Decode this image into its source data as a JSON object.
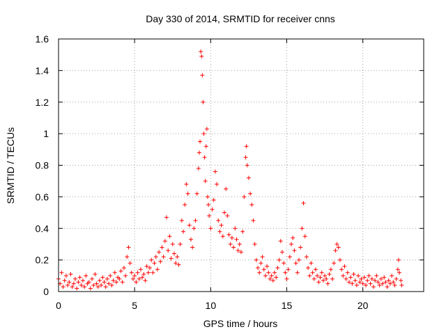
{
  "chart_data": {
    "type": "scatter",
    "title": "Day 330 of 2014, SRMTID for receiver cnns",
    "xlabel": "GPS time / hours",
    "ylabel": "SRMTID / TECUs",
    "xlim": [
      0,
      24
    ],
    "ylim": [
      0,
      1.6
    ],
    "grid": true,
    "marker": "+",
    "color": "#ff0000",
    "x_ticks": [
      0,
      5,
      10,
      15,
      20
    ],
    "x_tick_labels": [
      "0",
      "5",
      "10",
      "15",
      "20"
    ],
    "y_ticks": [
      0,
      0.2,
      0.4,
      0.6,
      0.8,
      1.0,
      1.2,
      1.4,
      1.6
    ],
    "y_tick_labels": [
      "0",
      "0.2",
      "0.4",
      "0.6",
      "0.8",
      "1",
      "1.2",
      "1.4",
      "1.6"
    ],
    "series": [
      {
        "name": "SRMTID",
        "points": [
          [
            0.0,
            0.08
          ],
          [
            0.1,
            0.05
          ],
          [
            0.2,
            0.12
          ],
          [
            0.3,
            0.03
          ],
          [
            0.4,
            0.07
          ],
          [
            0.5,
            0.1
          ],
          [
            0.6,
            0.04
          ],
          [
            0.7,
            0.06
          ],
          [
            0.8,
            0.11
          ],
          [
            0.9,
            0.03
          ],
          [
            1.0,
            0.05
          ],
          [
            1.1,
            0.08
          ],
          [
            1.2,
            0.02
          ],
          [
            1.3,
            0.06
          ],
          [
            1.4,
            0.09
          ],
          [
            1.5,
            0.04
          ],
          [
            1.6,
            0.07
          ],
          [
            1.7,
            0.03
          ],
          [
            1.8,
            0.1
          ],
          [
            1.9,
            0.05
          ],
          [
            2.0,
            0.06
          ],
          [
            2.1,
            0.02
          ],
          [
            2.2,
            0.08
          ],
          [
            2.3,
            0.04
          ],
          [
            2.4,
            0.11
          ],
          [
            2.5,
            0.05
          ],
          [
            2.6,
            0.03
          ],
          [
            2.7,
            0.07
          ],
          [
            2.8,
            0.04
          ],
          [
            2.9,
            0.09
          ],
          [
            3.0,
            0.06
          ],
          [
            3.1,
            0.03
          ],
          [
            3.2,
            0.08
          ],
          [
            3.3,
            0.05
          ],
          [
            3.4,
            0.1
          ],
          [
            3.5,
            0.04
          ],
          [
            3.6,
            0.07
          ],
          [
            3.7,
            0.12
          ],
          [
            3.8,
            0.06
          ],
          [
            3.9,
            0.09
          ],
          [
            4.0,
            0.08
          ],
          [
            4.1,
            0.13
          ],
          [
            4.2,
            0.06
          ],
          [
            4.3,
            0.15
          ],
          [
            4.4,
            0.1
          ],
          [
            4.5,
            0.22
          ],
          [
            4.6,
            0.28
          ],
          [
            4.7,
            0.18
          ],
          [
            4.8,
            0.12
          ],
          [
            4.9,
            0.08
          ],
          [
            5.0,
            0.1
          ],
          [
            5.1,
            0.06
          ],
          [
            5.2,
            0.12
          ],
          [
            5.3,
            0.08
          ],
          [
            5.4,
            0.14
          ],
          [
            5.5,
            0.09
          ],
          [
            5.6,
            0.11
          ],
          [
            5.7,
            0.07
          ],
          [
            5.8,
            0.16
          ],
          [
            5.9,
            0.12
          ],
          [
            6.0,
            0.15
          ],
          [
            6.1,
            0.2
          ],
          [
            6.2,
            0.12
          ],
          [
            6.3,
            0.18
          ],
          [
            6.4,
            0.22
          ],
          [
            6.5,
            0.14
          ],
          [
            6.6,
            0.25
          ],
          [
            6.7,
            0.19
          ],
          [
            6.8,
            0.28
          ],
          [
            6.9,
            0.22
          ],
          [
            7.0,
            0.32
          ],
          [
            7.1,
            0.47
          ],
          [
            7.2,
            0.26
          ],
          [
            7.3,
            0.35
          ],
          [
            7.4,
            0.21
          ],
          [
            7.5,
            0.3
          ],
          [
            7.6,
            0.24
          ],
          [
            7.7,
            0.18
          ],
          [
            7.8,
            0.22
          ],
          [
            7.9,
            0.17
          ],
          [
            8.0,
            0.3
          ],
          [
            8.1,
            0.45
          ],
          [
            8.2,
            0.38
          ],
          [
            8.3,
            0.55
          ],
          [
            8.4,
            0.68
          ],
          [
            8.5,
            0.62
          ],
          [
            8.6,
            0.42
          ],
          [
            8.7,
            0.33
          ],
          [
            8.8,
            0.28
          ],
          [
            8.9,
            0.4
          ],
          [
            9.0,
            0.45
          ],
          [
            9.1,
            0.62
          ],
          [
            9.2,
            0.78
          ],
          [
            9.25,
            0.88
          ],
          [
            9.3,
            0.95
          ],
          [
            9.35,
            1.52
          ],
          [
            9.4,
            1.49
          ],
          [
            9.45,
            1.37
          ],
          [
            9.5,
            1.2
          ],
          [
            9.55,
            1.0
          ],
          [
            9.6,
            0.85
          ],
          [
            9.65,
            0.7
          ],
          [
            9.7,
            0.92
          ],
          [
            9.75,
            1.03
          ],
          [
            9.8,
            0.6
          ],
          [
            9.85,
            0.55
          ],
          [
            9.9,
            0.48
          ],
          [
            10.0,
            0.4
          ],
          [
            10.1,
            0.52
          ],
          [
            10.2,
            0.58
          ],
          [
            10.3,
            0.76
          ],
          [
            10.4,
            0.68
          ],
          [
            10.5,
            0.45
          ],
          [
            10.6,
            0.38
          ],
          [
            10.7,
            0.42
          ],
          [
            10.8,
            0.35
          ],
          [
            10.9,
            0.5
          ],
          [
            11.0,
            0.65
          ],
          [
            11.1,
            0.48
          ],
          [
            11.2,
            0.36
          ],
          [
            11.3,
            0.3
          ],
          [
            11.4,
            0.34
          ],
          [
            11.5,
            0.28
          ],
          [
            11.6,
            0.4
          ],
          [
            11.7,
            0.33
          ],
          [
            11.8,
            0.26
          ],
          [
            11.9,
            0.3
          ],
          [
            12.0,
            0.25
          ],
          [
            12.1,
            0.38
          ],
          [
            12.2,
            0.6
          ],
          [
            12.3,
            0.85
          ],
          [
            12.35,
            0.92
          ],
          [
            12.4,
            0.8
          ],
          [
            12.5,
            0.72
          ],
          [
            12.6,
            0.62
          ],
          [
            12.7,
            0.55
          ],
          [
            12.8,
            0.45
          ],
          [
            12.9,
            0.3
          ],
          [
            13.0,
            0.2
          ],
          [
            13.1,
            0.15
          ],
          [
            13.2,
            0.12
          ],
          [
            13.3,
            0.18
          ],
          [
            13.4,
            0.22
          ],
          [
            13.5,
            0.14
          ],
          [
            13.6,
            0.1
          ],
          [
            13.7,
            0.16
          ],
          [
            13.8,
            0.12
          ],
          [
            13.9,
            0.08
          ],
          [
            14.0,
            0.1
          ],
          [
            14.1,
            0.07
          ],
          [
            14.2,
            0.12
          ],
          [
            14.3,
            0.09
          ],
          [
            14.4,
            0.15
          ],
          [
            14.5,
            0.2
          ],
          [
            14.6,
            0.32
          ],
          [
            14.7,
            0.25
          ],
          [
            14.8,
            0.18
          ],
          [
            14.9,
            0.12
          ],
          [
            15.0,
            0.08
          ],
          [
            15.1,
            0.14
          ],
          [
            15.2,
            0.22
          ],
          [
            15.3,
            0.3
          ],
          [
            15.4,
            0.34
          ],
          [
            15.5,
            0.26
          ],
          [
            15.6,
            0.18
          ],
          [
            15.7,
            0.12
          ],
          [
            15.8,
            0.2
          ],
          [
            15.9,
            0.28
          ],
          [
            16.0,
            0.4
          ],
          [
            16.1,
            0.56
          ],
          [
            16.2,
            0.35
          ],
          [
            16.3,
            0.22
          ],
          [
            16.4,
            0.15
          ],
          [
            16.5,
            0.1
          ],
          [
            16.6,
            0.18
          ],
          [
            16.7,
            0.12
          ],
          [
            16.8,
            0.08
          ],
          [
            16.9,
            0.14
          ],
          [
            17.0,
            0.1
          ],
          [
            17.1,
            0.06
          ],
          [
            17.2,
            0.09
          ],
          [
            17.3,
            0.12
          ],
          [
            17.4,
            0.07
          ],
          [
            17.5,
            0.1
          ],
          [
            17.6,
            0.08
          ],
          [
            17.7,
            0.05
          ],
          [
            17.8,
            0.11
          ],
          [
            17.9,
            0.14
          ],
          [
            18.0,
            0.08
          ],
          [
            18.1,
            0.18
          ],
          [
            18.2,
            0.26
          ],
          [
            18.3,
            0.3
          ],
          [
            18.4,
            0.28
          ],
          [
            18.5,
            0.2
          ],
          [
            18.6,
            0.14
          ],
          [
            18.7,
            0.1
          ],
          [
            18.8,
            0.16
          ],
          [
            18.9,
            0.08
          ],
          [
            19.0,
            0.12
          ],
          [
            19.1,
            0.06
          ],
          [
            19.2,
            0.09
          ],
          [
            19.3,
            0.05
          ],
          [
            19.4,
            0.11
          ],
          [
            19.5,
            0.07
          ],
          [
            19.6,
            0.04
          ],
          [
            19.7,
            0.1
          ],
          [
            19.8,
            0.06
          ],
          [
            19.9,
            0.08
          ],
          [
            20.0,
            0.05
          ],
          [
            20.1,
            0.09
          ],
          [
            20.2,
            0.04
          ],
          [
            20.3,
            0.07
          ],
          [
            20.4,
            0.1
          ],
          [
            20.5,
            0.05
          ],
          [
            20.6,
            0.08
          ],
          [
            20.7,
            0.03
          ],
          [
            20.8,
            0.07
          ],
          [
            20.9,
            0.1
          ],
          [
            21.0,
            0.06
          ],
          [
            21.1,
            0.04
          ],
          [
            21.2,
            0.08
          ],
          [
            21.3,
            0.05
          ],
          [
            21.4,
            0.09
          ],
          [
            21.5,
            0.06
          ],
          [
            21.6,
            0.03
          ],
          [
            21.7,
            0.07
          ],
          [
            21.8,
            0.05
          ],
          [
            21.9,
            0.1
          ],
          [
            22.0,
            0.06
          ],
          [
            22.1,
            0.04
          ],
          [
            22.2,
            0.08
          ],
          [
            22.3,
            0.14
          ],
          [
            22.35,
            0.2
          ],
          [
            22.4,
            0.12
          ],
          [
            22.5,
            0.07
          ],
          [
            22.55,
            0.04
          ]
        ]
      }
    ]
  }
}
